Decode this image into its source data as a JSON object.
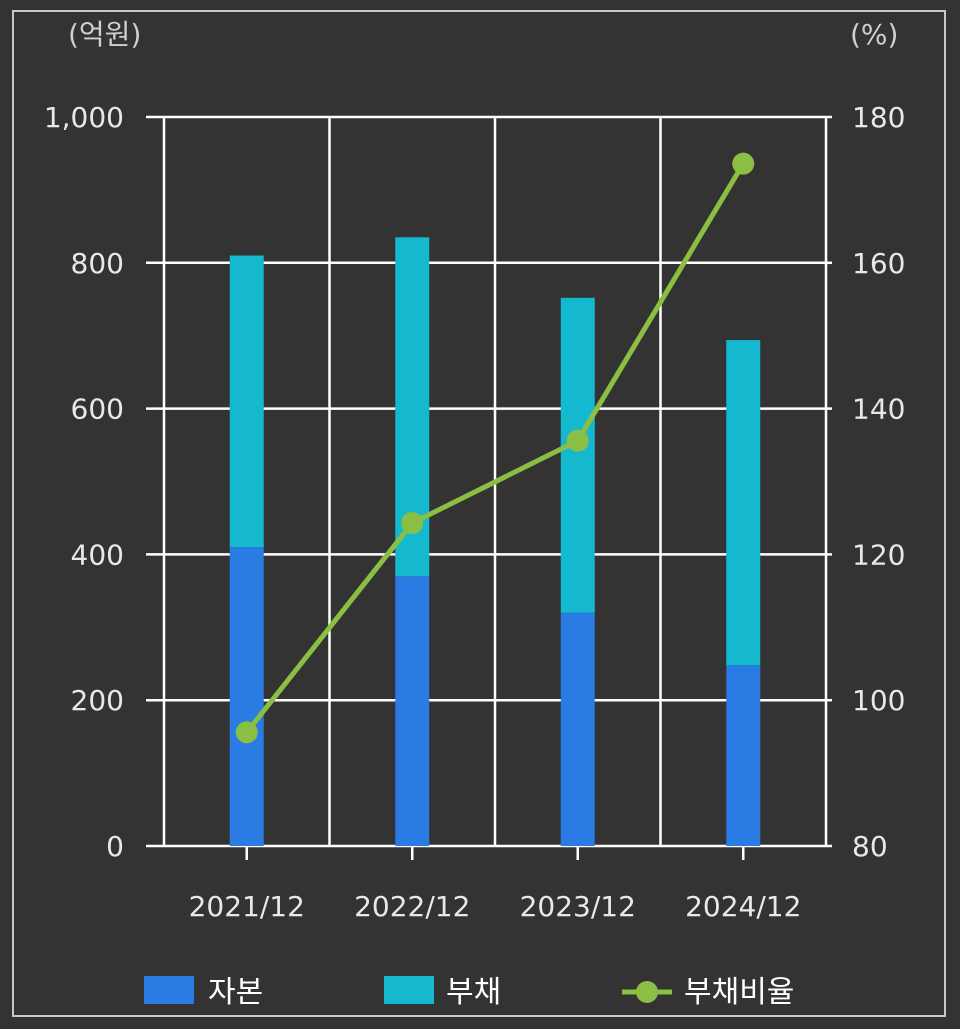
{
  "chart_data": {
    "type": "bar",
    "stacked": true,
    "categories": [
      "2021/12",
      "2022/12",
      "2023/12",
      "2024/12"
    ],
    "series": [
      {
        "name": "자본",
        "type": "bar",
        "axis": "left",
        "color": "#2b7be4",
        "values": [
          410,
          370,
          320,
          248
        ]
      },
      {
        "name": "부채",
        "type": "bar",
        "axis": "left",
        "color": "#14b8cf",
        "values": [
          400,
          465,
          432,
          446
        ]
      },
      {
        "name": "부채비율",
        "type": "line",
        "axis": "right",
        "color": "#8bbf44",
        "values": [
          95.6,
          124.3,
          135.6,
          173.6
        ]
      }
    ],
    "y_left": {
      "label": "(억원)",
      "min": 0,
      "max": 1000,
      "step": 200
    },
    "y_right": {
      "label": "(%)",
      "min": 80,
      "max": 180,
      "step": 20
    },
    "grid": true,
    "legend_position": "bottom",
    "y_left_tick_labels": [
      "0",
      "200",
      "400",
      "600",
      "800",
      "1,000"
    ],
    "y_right_tick_labels": [
      "80",
      "100",
      "120",
      "140",
      "160",
      "180"
    ]
  }
}
